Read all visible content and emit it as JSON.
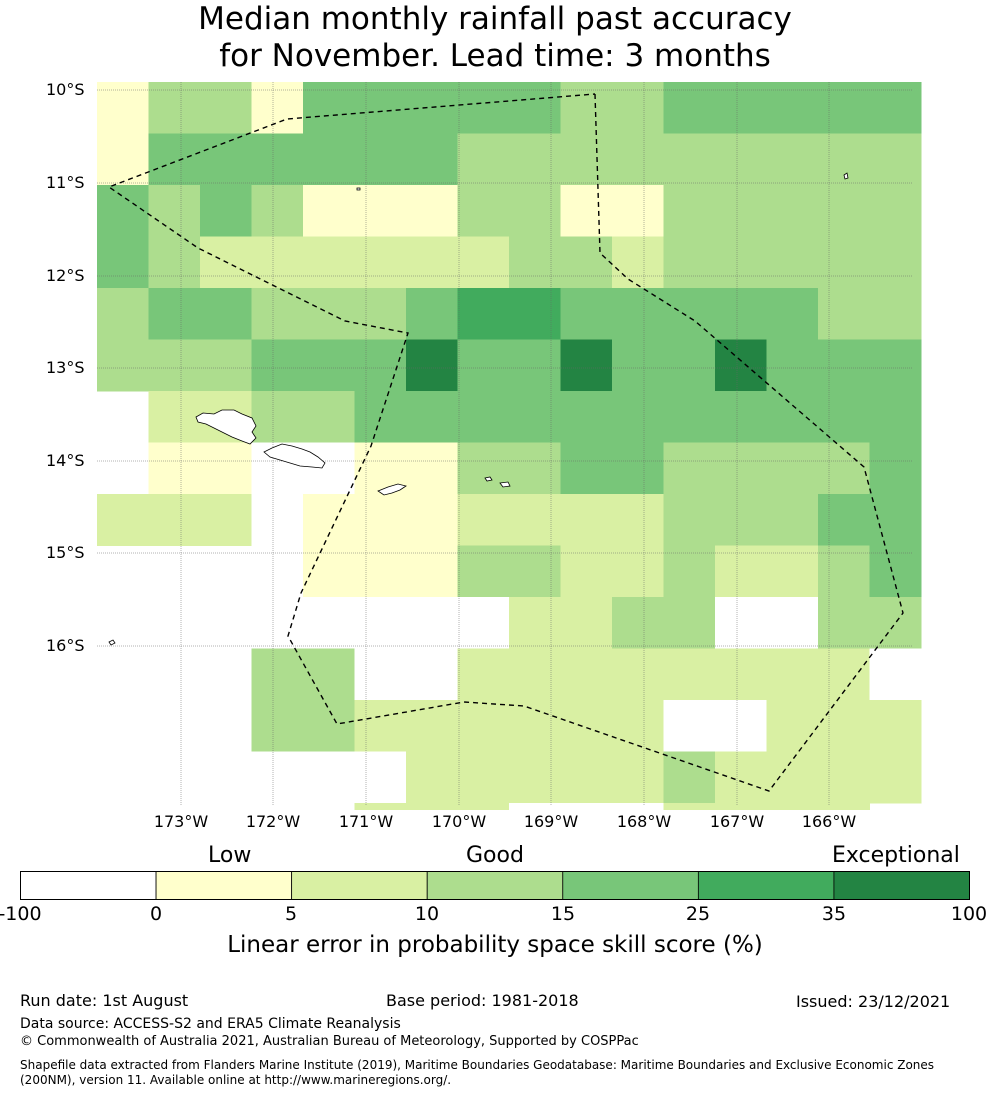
{
  "title": {
    "line1": "Median monthly rainfall past accuracy",
    "line2": "for November. Lead time: 3 months"
  },
  "map": {
    "lat_labels": [
      "10°S",
      "11°S",
      "12°S",
      "13°S",
      "14°S",
      "15°S",
      "16°S"
    ],
    "lon_labels": [
      "173°W",
      "172°W",
      "171°W",
      "170°W",
      "169°W",
      "168°W",
      "167°W",
      "166°W"
    ],
    "grid_class_rows": [
      [
        1,
        3,
        3,
        1,
        4,
        4,
        4,
        4,
        4,
        3,
        3,
        4,
        4,
        4,
        4,
        4
      ],
      [
        1,
        4,
        4,
        4,
        4,
        4,
        4,
        3,
        3,
        3,
        3,
        3,
        3,
        3,
        3,
        3
      ],
      [
        4,
        3,
        4,
        3,
        1,
        1,
        1,
        3,
        3,
        1,
        1,
        3,
        3,
        3,
        3,
        3
      ],
      [
        4,
        3,
        2,
        2,
        2,
        2,
        2,
        2,
        3,
        3,
        2,
        3,
        3,
        3,
        3,
        3
      ],
      [
        3,
        4,
        4,
        3,
        3,
        3,
        4,
        5,
        5,
        4,
        4,
        4,
        4,
        4,
        3,
        3
      ],
      [
        3,
        3,
        3,
        4,
        4,
        4,
        6,
        4,
        4,
        6,
        4,
        4,
        6,
        4,
        4,
        4
      ],
      [
        -1,
        2,
        2,
        3,
        3,
        4,
        4,
        4,
        4,
        4,
        4,
        4,
        4,
        4,
        4,
        4
      ],
      [
        -1,
        1,
        1,
        0,
        0,
        1,
        1,
        3,
        3,
        4,
        4,
        3,
        3,
        3,
        3,
        4
      ],
      [
        2,
        2,
        2,
        0,
        1,
        1,
        1,
        2,
        2,
        2,
        2,
        3,
        3,
        3,
        4,
        4
      ],
      [
        -1,
        -1,
        -1,
        0,
        1,
        1,
        1,
        3,
        3,
        2,
        2,
        3,
        2,
        2,
        3,
        4
      ],
      [
        -1,
        -1,
        -1,
        0,
        0,
        0,
        0,
        0,
        2,
        2,
        3,
        3,
        0,
        0,
        3,
        3
      ],
      [
        -1,
        0,
        0,
        3,
        3,
        0,
        -1,
        2,
        2,
        2,
        2,
        2,
        2,
        2,
        2,
        0
      ],
      [
        -1,
        -1,
        -1,
        3,
        3,
        2,
        2,
        2,
        2,
        2,
        2,
        0,
        0,
        2,
        2,
        2
      ],
      [
        -1,
        -1,
        -1,
        0,
        0,
        0,
        2,
        2,
        2,
        2,
        2,
        3,
        2,
        2,
        2,
        2
      ],
      [
        -1,
        -1,
        -1,
        -1,
        -1,
        2,
        2,
        2,
        0,
        0,
        0,
        2,
        2,
        2,
        2,
        -1
      ]
    ]
  },
  "colorbar": {
    "ticks": [
      "-100",
      "0",
      "5",
      "10",
      "15",
      "25",
      "35",
      "100"
    ],
    "colors": [
      "#ffffff",
      "#ffffcc",
      "#d9f0a3",
      "#addd8e",
      "#78c679",
      "#41ab5d",
      "#238443"
    ],
    "categories": {
      "low": "Low",
      "good": "Good",
      "exceptional": "Exceptional"
    },
    "label": "Linear error in probability space skill score (%)"
  },
  "footer": {
    "run_date": "Run date: 1st August",
    "base_period": "Base period: 1981-2018",
    "issued": "Issued: 23/12/2021",
    "data_source": "Data source: ACCESS-S2 and ERA5 Climate Reanalysis",
    "copyright": "© Commonwealth of Australia 2021, Australian Bureau of Meteorology, Supported by COSPPac",
    "shapefile_line1": "Shapefile data extracted from Flanders Marine Institute (2019), Maritime Boundaries Geodatabase: Maritime Boundaries and Exclusive Economic Zones",
    "shapefile_line2": "(200NM), version 11. Available online at http://www.marineregions.org/."
  }
}
